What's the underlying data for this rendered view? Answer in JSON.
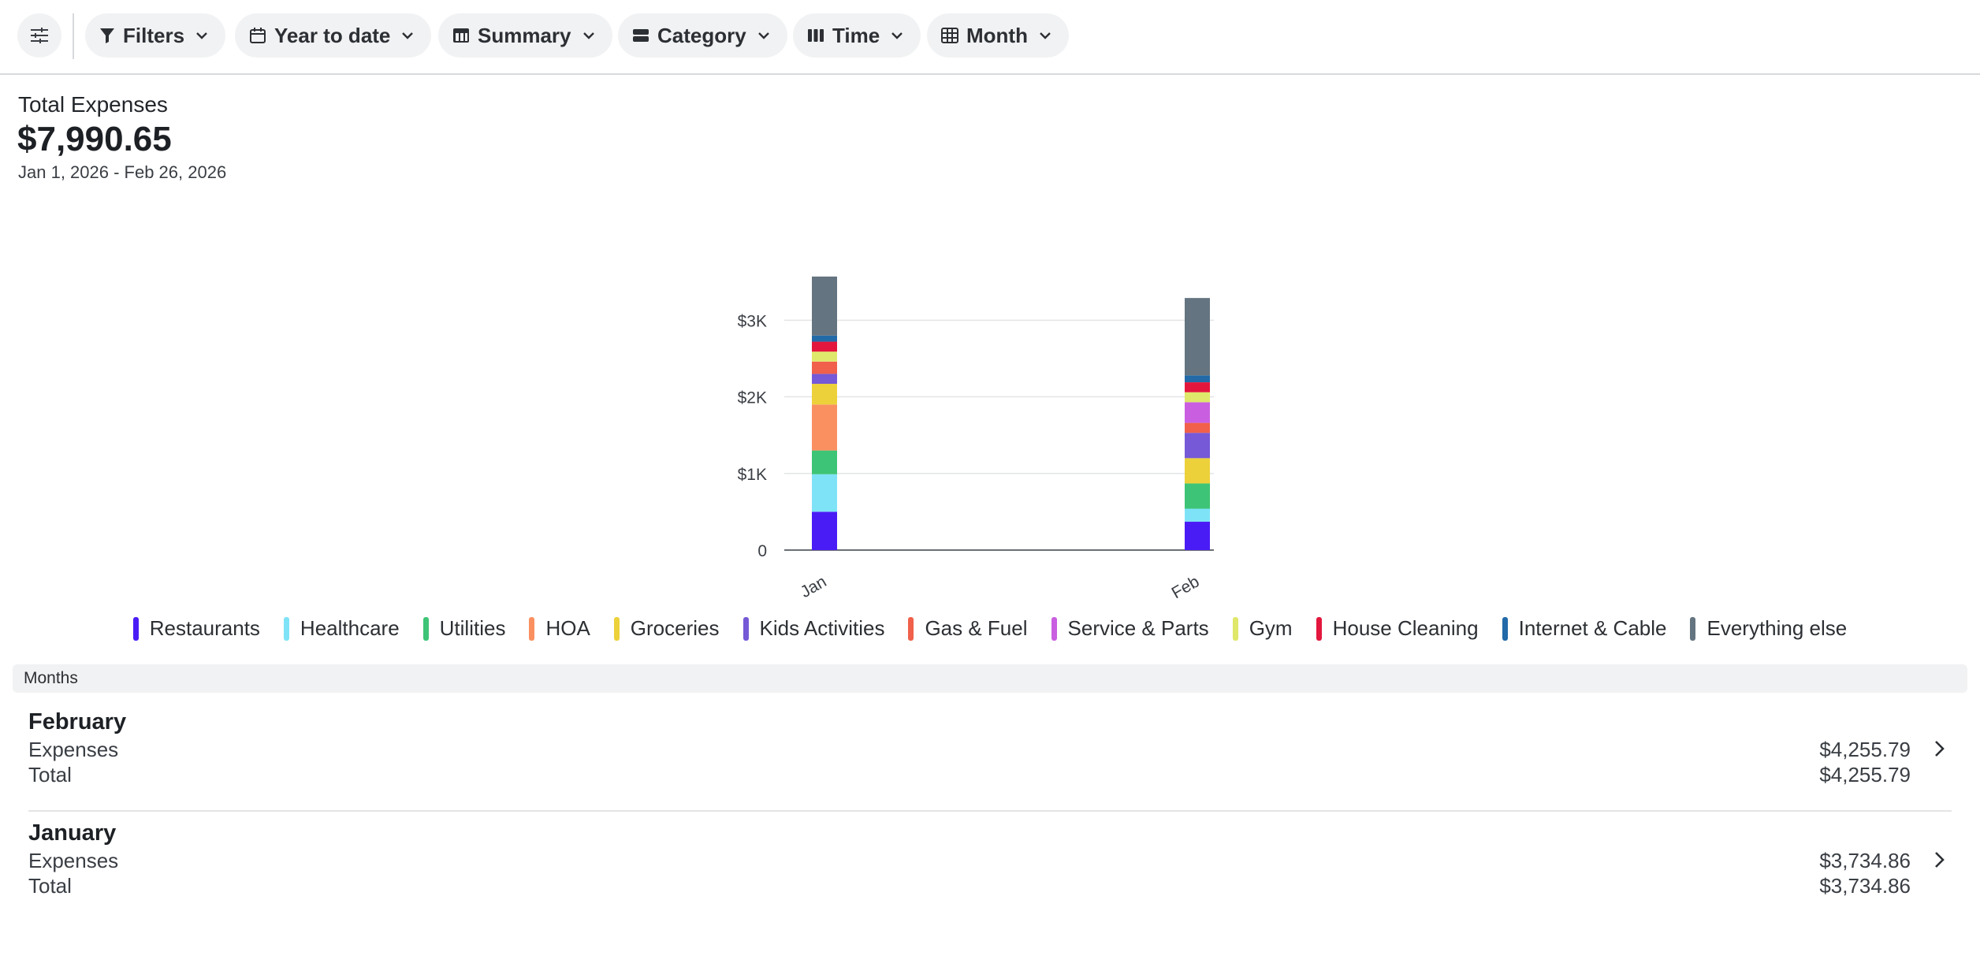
{
  "toolbar": {
    "settings_icon": "sliders-icon",
    "filters_label": "Filters",
    "date_range_label": "Year to date",
    "view_label": "Summary",
    "group_label": "Category",
    "axis_label": "Time",
    "interval_label": "Month"
  },
  "summary": {
    "title": "Total Expenses",
    "amount": "$7,990.65",
    "date_range": "Jan 1, 2026 - Feb 26, 2026"
  },
  "chart_data": {
    "type": "bar",
    "stacked": true,
    "categories": [
      "Jan",
      "Feb"
    ],
    "y_ticks": [
      "0",
      "$1K",
      "$2K",
      "$3K"
    ],
    "y_tick_values": [
      0,
      1000,
      2000,
      3000
    ],
    "ylim": [
      0,
      3600
    ],
    "grid": true,
    "legend_position": "bottom",
    "series": [
      {
        "name": "Restaurants",
        "color": "#4a1cf5",
        "values": [
          500,
          370
        ]
      },
      {
        "name": "Healthcare",
        "color": "#7fe3f7",
        "values": [
          490,
          170
        ]
      },
      {
        "name": "Utilities",
        "color": "#3ec476",
        "values": [
          310,
          330
        ]
      },
      {
        "name": "HOA",
        "color": "#fa9060",
        "values": [
          600,
          0
        ]
      },
      {
        "name": "Groceries",
        "color": "#ecd13a",
        "values": [
          270,
          330
        ]
      },
      {
        "name": "Kids Activities",
        "color": "#7559d6",
        "values": [
          130,
          330
        ]
      },
      {
        "name": "Gas & Fuel",
        "color": "#f0604a",
        "values": [
          160,
          130
        ]
      },
      {
        "name": "Service & Parts",
        "color": "#c95fe0",
        "values": [
          0,
          270
        ]
      },
      {
        "name": "Gym",
        "color": "#dfe86a",
        "values": [
          130,
          130
        ]
      },
      {
        "name": "House Cleaning",
        "color": "#e3173d",
        "values": [
          130,
          130
        ]
      },
      {
        "name": "Internet & Cable",
        "color": "#226aa8",
        "values": [
          80,
          90
        ]
      },
      {
        "name": "Everything else",
        "color": "#647480",
        "values": [
          770,
          1010
        ]
      }
    ]
  },
  "months": {
    "header": "Months",
    "rows": [
      {
        "name": "February",
        "expenses_label": "Expenses",
        "expenses": "$4,255.79",
        "total_label": "Total",
        "total": "$4,255.79"
      },
      {
        "name": "January",
        "expenses_label": "Expenses",
        "expenses": "$3,734.86",
        "total_label": "Total",
        "total": "$3,734.86"
      }
    ]
  }
}
